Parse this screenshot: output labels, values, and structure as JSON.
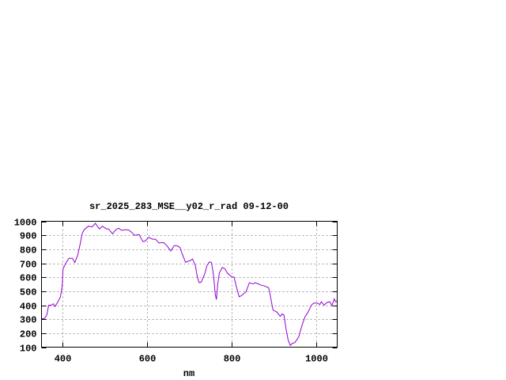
{
  "chart_data": {
    "type": "line",
    "title": "sr_2025_283_MSE__y02_r_rad 09-12-00",
    "xlabel": "nm",
    "ylabel": "",
    "xlim": [
      350,
      1050
    ],
    "ylim": [
      100,
      1000
    ],
    "xticks": [
      400,
      600,
      800,
      1000
    ],
    "yticks": [
      100,
      200,
      300,
      400,
      500,
      600,
      700,
      800,
      900,
      1000
    ],
    "grid": true,
    "line_color": "#9400d3",
    "series": [
      {
        "x": [
          350,
          357,
          362.5,
          367,
          373,
          378,
          382,
          389,
          395,
          399,
          401,
          407.5,
          415,
          423,
          429,
          436,
          442,
          446,
          451,
          461,
          470,
          477.5,
          487,
          494,
          504,
          509,
          518,
          526,
          532.5,
          540,
          550,
          556,
          564,
          570,
          581,
          590,
          595,
          604,
          612.5,
          620,
          627.5,
          639,
          647,
          656,
          664,
          671,
          678,
          682.5,
          691,
          702.5,
          707.5,
          714,
          719,
          723,
          728,
          736,
          742,
          748,
          752.5,
          757.5,
          761,
          764,
          767,
          771,
          778,
          784,
          790,
          799,
          806,
          811,
          818,
          824,
          834,
          842,
          851,
          856,
          862.5,
          870,
          876,
          887.5,
          890,
          898,
          907.5,
          915,
          920,
          924,
          929,
          934,
          939,
          944,
          950,
          959,
          967,
          974,
          980,
          989,
          994,
          1003,
          1009,
          1012.5,
          1019,
          1026,
          1032.5,
          1037.5,
          1043,
          1046,
          1050
        ],
        "y": [
          303,
          305,
          330,
          400,
          400,
          410,
          390,
          425,
          460,
          540,
          660,
          700,
          735,
          735,
          705,
          760,
          845,
          910,
          940,
          965,
          960,
          985,
          945,
          965,
          945,
          945,
          910,
          940,
          950,
          935,
          940,
          938,
          920,
          900,
          905,
          855,
          858,
          885,
          872,
          872,
          845,
          848,
          825,
          788,
          825,
          825,
          812,
          770,
          707,
          720,
          730,
          685,
          600,
          562,
          565,
          620,
          685,
          710,
          705,
          610,
          485,
          440,
          545,
          630,
          670,
          660,
          630,
          605,
          600,
          535,
          460,
          470,
          495,
          560,
          552,
          560,
          553,
          543,
          540,
          525,
          495,
          365,
          350,
          320,
          338,
          328,
          225,
          150,
          112,
          128,
          133,
          175,
          260,
          318,
          345,
          400,
          415,
          415,
          405,
          425,
          400,
          420,
          425,
          398,
          445,
          425,
          430
        ]
      }
    ]
  }
}
